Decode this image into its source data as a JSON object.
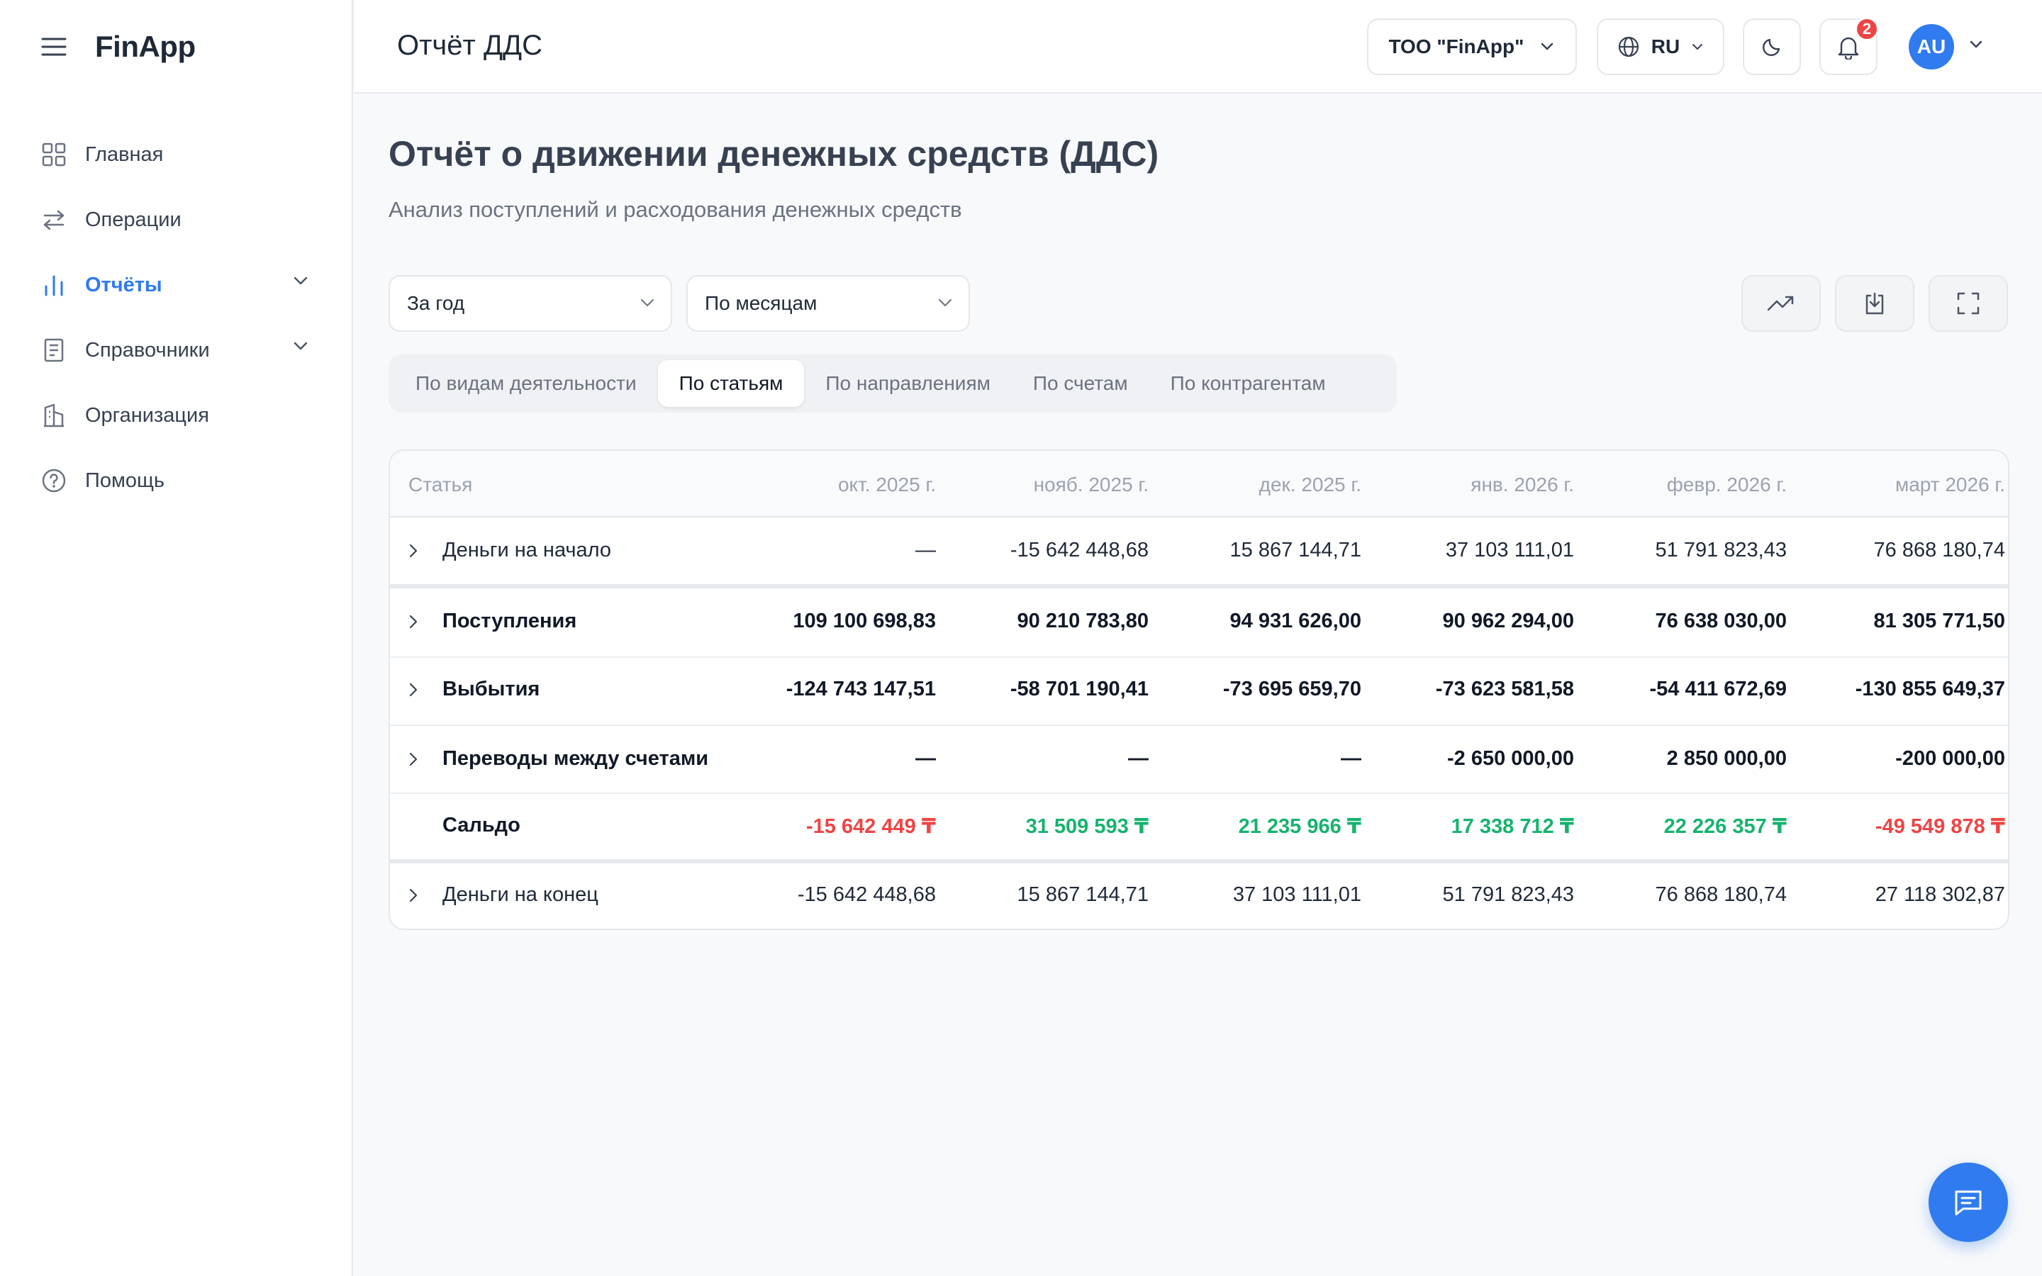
{
  "app": {
    "name": "FinApp"
  },
  "sidebar": {
    "items": [
      {
        "label": "Главная",
        "icon": "grid-icon"
      },
      {
        "label": "Операции",
        "icon": "arrows-swap-icon"
      },
      {
        "label": "Отчёты",
        "icon": "bar-chart-icon",
        "active": true,
        "expandable": true
      },
      {
        "label": "Справочники",
        "icon": "book-icon",
        "expandable": true
      },
      {
        "label": "Организация",
        "icon": "building-icon"
      },
      {
        "label": "Помощь",
        "icon": "help-circle-icon"
      }
    ]
  },
  "header": {
    "title": "Отчёт ДДС",
    "org": "ТОО \"FinApp\"",
    "lang": "RU",
    "notifications": "2",
    "avatar": "AU"
  },
  "main": {
    "title": "Отчёт о движении денежных средств (ДДС)",
    "subtitle": "Анализ поступлений и расходования денежных средств",
    "period_select": "За год",
    "group_select": "По месяцам",
    "tabs": [
      {
        "label": "По видам деятельности"
      },
      {
        "label": "По статьям",
        "active": true
      },
      {
        "label": "По направлениям"
      },
      {
        "label": "По счетам"
      },
      {
        "label": "По контрагентам"
      }
    ]
  },
  "table": {
    "header": [
      "Статья",
      "окт. 2025 г.",
      "нояб. 2025 г.",
      "дек. 2025 г.",
      "янв. 2026 г.",
      "февр. 2026 г.",
      "март 2026 г."
    ],
    "rows": [
      {
        "label": "Деньги на начало",
        "values": [
          "—",
          "-15 642 448,68",
          "15 867 144,71",
          "37 103 111,01",
          "51 791 823,43",
          "76 868 180,74"
        ]
      },
      {
        "label": "Поступления",
        "values": [
          "109 100 698,83",
          "90 210 783,80",
          "94 931 626,00",
          "90 962 294,00",
          "76 638 030,00",
          "81 305 771,50"
        ]
      },
      {
        "label": "Выбытия",
        "values": [
          "-124 743 147,51",
          "-58 701 190,41",
          "-73 695 659,70",
          "-73 623 581,58",
          "-54 411 672,69",
          "-130 855 649,37"
        ]
      },
      {
        "label": "Переводы между счетами",
        "values": [
          "—",
          "—",
          "—",
          "-2 650 000,00",
          "2 850 000,00",
          "-200 000,00"
        ]
      },
      {
        "label": "Сальдо",
        "values": [
          "-15 642 449 ₸",
          "31 509 593 ₸",
          "21 235 966 ₸",
          "17 338 712 ₸",
          "22 226 357 ₸",
          "-49 549 878 ₸"
        ]
      },
      {
        "label": "Деньги на конец",
        "values": [
          "-15 642 448,68",
          "15 867 144,71",
          "37 103 111,01",
          "51 791 823,43",
          "76 868 180,74",
          "27 118 302,87"
        ]
      }
    ]
  },
  "colors": {
    "accent": "#2f7bef",
    "negative": "#ef4444",
    "positive": "#16b36e"
  }
}
